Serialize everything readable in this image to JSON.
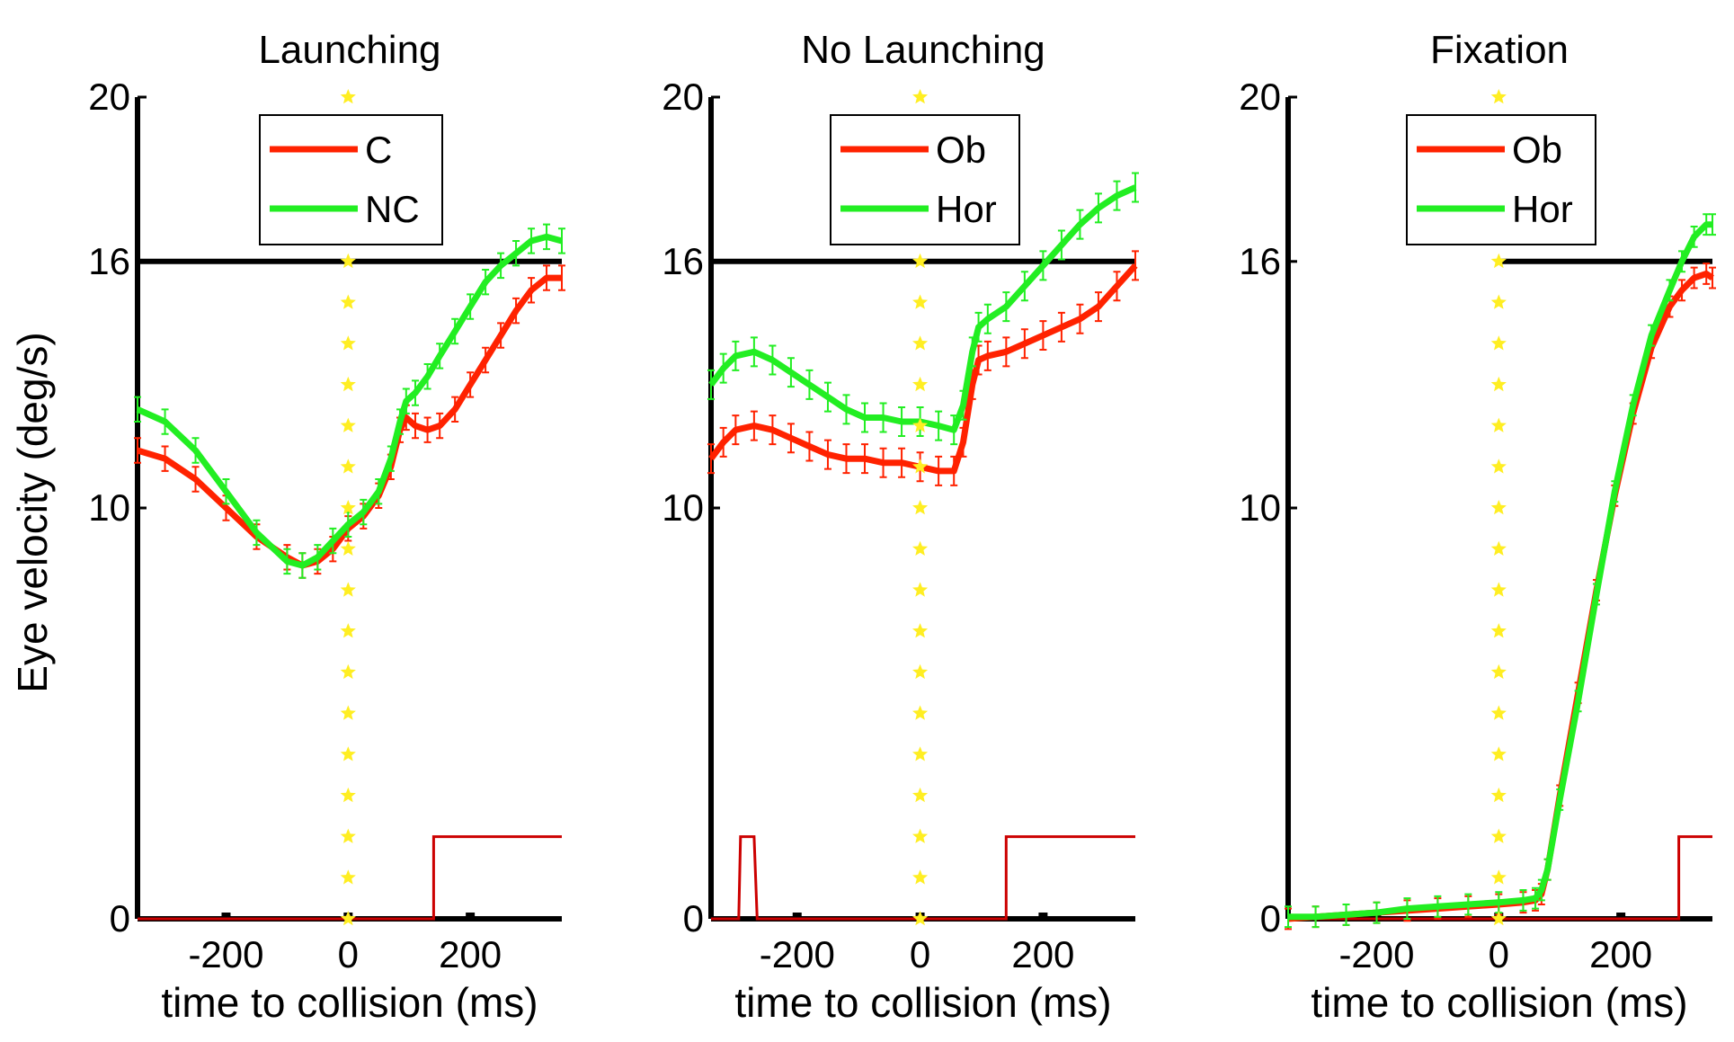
{
  "figure": {
    "ylabel": "Eye velocity (deg/s)"
  },
  "colors": {
    "red": "#ff2200",
    "green": "#22ee22",
    "black": "#000000",
    "yellow": "#ffee22",
    "step": "#cc0000"
  },
  "chart_data": [
    {
      "type": "line",
      "title": "Launching",
      "xlabel": "time to collision (ms)",
      "ylabel": "Eye velocity (deg/s)",
      "xlim": [
        -345,
        350
      ],
      "ylim": [
        0,
        20
      ],
      "xticks": [
        -200,
        0,
        200
      ],
      "xtick_labels": [
        "-200",
        "0",
        "200"
      ],
      "yticks": [
        0,
        10,
        16,
        20
      ],
      "ytick_labels": [
        "0",
        "10",
        "16",
        "20"
      ],
      "reference_line_y": 16,
      "reference_line_x_range": [
        -345,
        350
      ],
      "collision_marker_x": 0,
      "legend": {
        "position": "top-center",
        "entries": [
          "C",
          "NC"
        ]
      },
      "series": [
        {
          "name": "C",
          "color": "red",
          "x": [
            -345,
            -300,
            -250,
            -200,
            -150,
            -100,
            -75,
            -50,
            -25,
            0,
            25,
            50,
            70,
            85,
            95,
            110,
            130,
            150,
            175,
            200,
            225,
            250,
            275,
            300,
            325,
            350
          ],
          "y": [
            11.4,
            11.2,
            10.7,
            10.0,
            9.3,
            8.8,
            8.6,
            8.7,
            9.0,
            9.5,
            9.8,
            10.3,
            11.0,
            11.9,
            12.2,
            12.0,
            11.9,
            12.0,
            12.4,
            13.0,
            13.6,
            14.2,
            14.8,
            15.3,
            15.6,
            15.6
          ],
          "err": 0.3
        },
        {
          "name": "NC",
          "color": "green",
          "x": [
            -345,
            -300,
            -250,
            -200,
            -150,
            -100,
            -75,
            -50,
            -25,
            0,
            25,
            50,
            70,
            85,
            95,
            110,
            130,
            150,
            175,
            200,
            225,
            250,
            275,
            300,
            325,
            350
          ],
          "y": [
            12.4,
            12.1,
            11.4,
            10.4,
            9.4,
            8.7,
            8.6,
            8.8,
            9.2,
            9.6,
            9.9,
            10.4,
            11.2,
            12.1,
            12.6,
            12.8,
            13.2,
            13.7,
            14.3,
            14.9,
            15.5,
            15.9,
            16.2,
            16.5,
            16.6,
            16.5
          ],
          "err": 0.3
        }
      ],
      "step_trace": {
        "color": "step",
        "x": [
          -345,
          140,
          140,
          350
        ],
        "y": [
          0,
          0,
          2,
          2
        ]
      }
    },
    {
      "type": "line",
      "title": "No Launching",
      "xlabel": "time to collision (ms)",
      "ylabel": "",
      "xlim": [
        -340,
        350
      ],
      "ylim": [
        0,
        20
      ],
      "xticks": [
        -200,
        0,
        200
      ],
      "xtick_labels": [
        "-200",
        "0",
        "200"
      ],
      "yticks": [
        0,
        10,
        16,
        20
      ],
      "ytick_labels": [
        "0",
        "10",
        "16",
        "20"
      ],
      "reference_line_y": 16,
      "reference_line_x_range": [
        -340,
        350
      ],
      "collision_marker_x": 0,
      "legend": {
        "position": "top-center",
        "entries": [
          "Ob",
          "Hor"
        ]
      },
      "series": [
        {
          "name": "Ob",
          "color": "red",
          "x": [
            -340,
            -320,
            -300,
            -270,
            -240,
            -210,
            -180,
            -150,
            -120,
            -90,
            -60,
            -30,
            0,
            30,
            55,
            70,
            85,
            95,
            110,
            140,
            170,
            200,
            230,
            260,
            290,
            320,
            350
          ],
          "y": [
            11.2,
            11.6,
            11.9,
            12.0,
            11.9,
            11.7,
            11.5,
            11.3,
            11.2,
            11.2,
            11.1,
            11.1,
            11.0,
            10.9,
            10.9,
            11.6,
            13.0,
            13.6,
            13.7,
            13.8,
            14.0,
            14.2,
            14.4,
            14.6,
            14.9,
            15.4,
            15.9
          ],
          "err": 0.35
        },
        {
          "name": "Hor",
          "color": "green",
          "x": [
            -340,
            -320,
            -300,
            -270,
            -240,
            -210,
            -180,
            -150,
            -120,
            -90,
            -60,
            -30,
            0,
            30,
            55,
            70,
            85,
            95,
            110,
            140,
            170,
            200,
            230,
            260,
            290,
            320,
            350
          ],
          "y": [
            13.0,
            13.4,
            13.7,
            13.8,
            13.6,
            13.3,
            13.0,
            12.7,
            12.4,
            12.2,
            12.2,
            12.1,
            12.1,
            12.0,
            11.9,
            12.5,
            13.8,
            14.4,
            14.6,
            14.9,
            15.4,
            15.9,
            16.4,
            16.9,
            17.3,
            17.6,
            17.8
          ],
          "err": 0.35
        }
      ],
      "step_trace": {
        "color": "step",
        "x": [
          -340,
          -295,
          -292,
          -270,
          -265,
          140,
          140,
          350
        ],
        "y": [
          0,
          0,
          2,
          2,
          0,
          0,
          2,
          2
        ]
      }
    },
    {
      "type": "line",
      "title": "Fixation",
      "xlabel": "time to collision (ms)",
      "ylabel": "",
      "xlim": [
        -345,
        350
      ],
      "ylim": [
        0,
        20
      ],
      "xticks": [
        -200,
        0,
        200
      ],
      "xtick_labels": [
        "-200",
        "0",
        "200"
      ],
      "yticks": [
        0,
        10,
        16,
        20
      ],
      "ytick_labels": [
        "0",
        "10",
        "16",
        "20"
      ],
      "reference_line_y": 16,
      "reference_line_x_range": [
        0,
        350
      ],
      "collision_marker_x": 0,
      "legend": {
        "position": "top-center",
        "entries": [
          "Ob",
          "Hor"
        ]
      },
      "series": [
        {
          "name": "Ob",
          "color": "red",
          "x": [
            -345,
            -300,
            -250,
            -200,
            -150,
            -100,
            -50,
            0,
            40,
            60,
            70,
            80,
            100,
            130,
            160,
            190,
            220,
            250,
            280,
            300,
            320,
            340,
            350
          ],
          "y": [
            0.0,
            0.05,
            0.1,
            0.15,
            0.2,
            0.25,
            0.3,
            0.35,
            0.4,
            0.45,
            0.6,
            1.2,
            3.0,
            5.5,
            8.0,
            10.3,
            12.3,
            13.9,
            14.9,
            15.3,
            15.6,
            15.7,
            15.6
          ],
          "err": 0.25
        },
        {
          "name": "Hor",
          "color": "green",
          "x": [
            -345,
            -300,
            -250,
            -200,
            -150,
            -100,
            -50,
            0,
            40,
            60,
            70,
            80,
            100,
            130,
            160,
            190,
            220,
            250,
            280,
            300,
            320,
            340,
            350
          ],
          "y": [
            0.05,
            0.05,
            0.1,
            0.15,
            0.25,
            0.3,
            0.35,
            0.4,
            0.45,
            0.5,
            0.7,
            1.2,
            2.9,
            5.3,
            7.9,
            10.4,
            12.5,
            14.2,
            15.3,
            16.0,
            16.6,
            16.9,
            16.9
          ],
          "err": 0.25
        }
      ],
      "step_trace": {
        "color": "step",
        "x": [
          -345,
          295,
          295,
          350
        ],
        "y": [
          0,
          0,
          2,
          2
        ]
      }
    }
  ]
}
